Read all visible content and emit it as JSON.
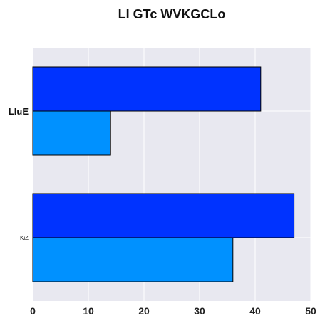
{
  "chart_data": {
    "type": "bar",
    "orientation": "horizontal",
    "title": "LI GTc WVKGCLo",
    "xlabel": "",
    "ylabel": "",
    "xlim": [
      0,
      50
    ],
    "x_ticks": [
      "0",
      "10",
      "20",
      "30",
      "40",
      "50"
    ],
    "categories": [
      "LIuE",
      "KiZ"
    ],
    "series": [
      {
        "values": [
          41,
          47
        ],
        "color": "#0033ff"
      },
      {
        "values": [
          14,
          36
        ],
        "color": "#0091ff"
      }
    ],
    "grid": true,
    "background": "#e8e8f0",
    "bar_edge_color": "#000000"
  }
}
